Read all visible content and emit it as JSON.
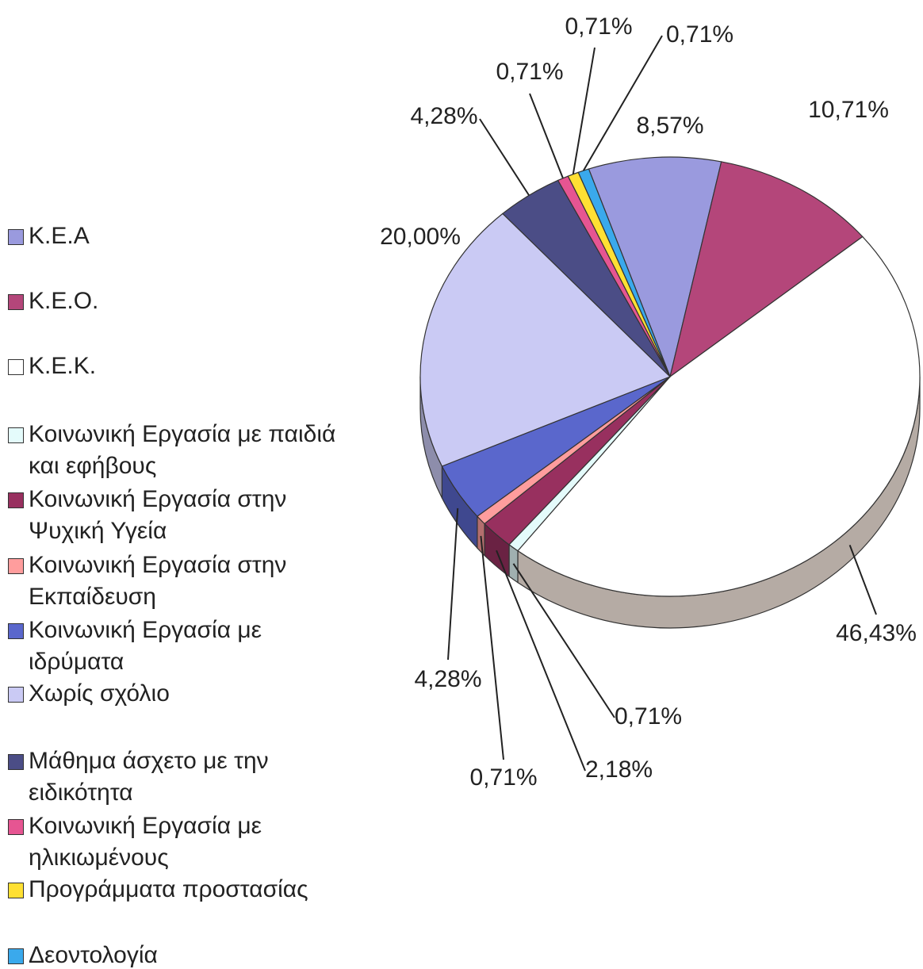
{
  "chart_data": {
    "type": "pie",
    "categories": [
      "Κ.Ε.Α",
      "Κ.Ε.Ο.",
      "Κ.Ε.Κ.",
      "Κοινωνική Εργασία με παιδιά και εφήβους",
      "Κοινωνική Εργασία στην Ψυχική Υγεία",
      "Κοινωνική Εργασία στην Εκπαίδευση",
      "Κοινωνική Εργασία με ιδρύματα",
      "Χωρίς σχόλιο",
      "Μάθημα άσχετο με την ειδικότητα",
      "Κοινωνική Εργασία με ηλικιωμένους",
      "Προγράμματα προστασίας",
      "Δεοντολογία"
    ],
    "values": [
      8.57,
      10.71,
      46.43,
      0.71,
      2.18,
      0.71,
      4.28,
      20.0,
      4.28,
      0.71,
      0.71,
      0.71
    ],
    "value_labels": [
      "8,57%",
      "10,71%",
      "46,43%",
      "0,71%",
      "2,18%",
      "0,71%",
      "4,28%",
      "20,00%",
      "4,28%",
      "0,71%",
      "0,71%",
      "0,71%"
    ],
    "colors": [
      "#9a9ade",
      "#b4467a",
      "#ffffff",
      "#e4fbfb",
      "#98305f",
      "#ff9d9d",
      "#5a67cc",
      "#cacaf4",
      "#4b4d86",
      "#e65592",
      "#ffe033",
      "#3aa9ec"
    ]
  }
}
